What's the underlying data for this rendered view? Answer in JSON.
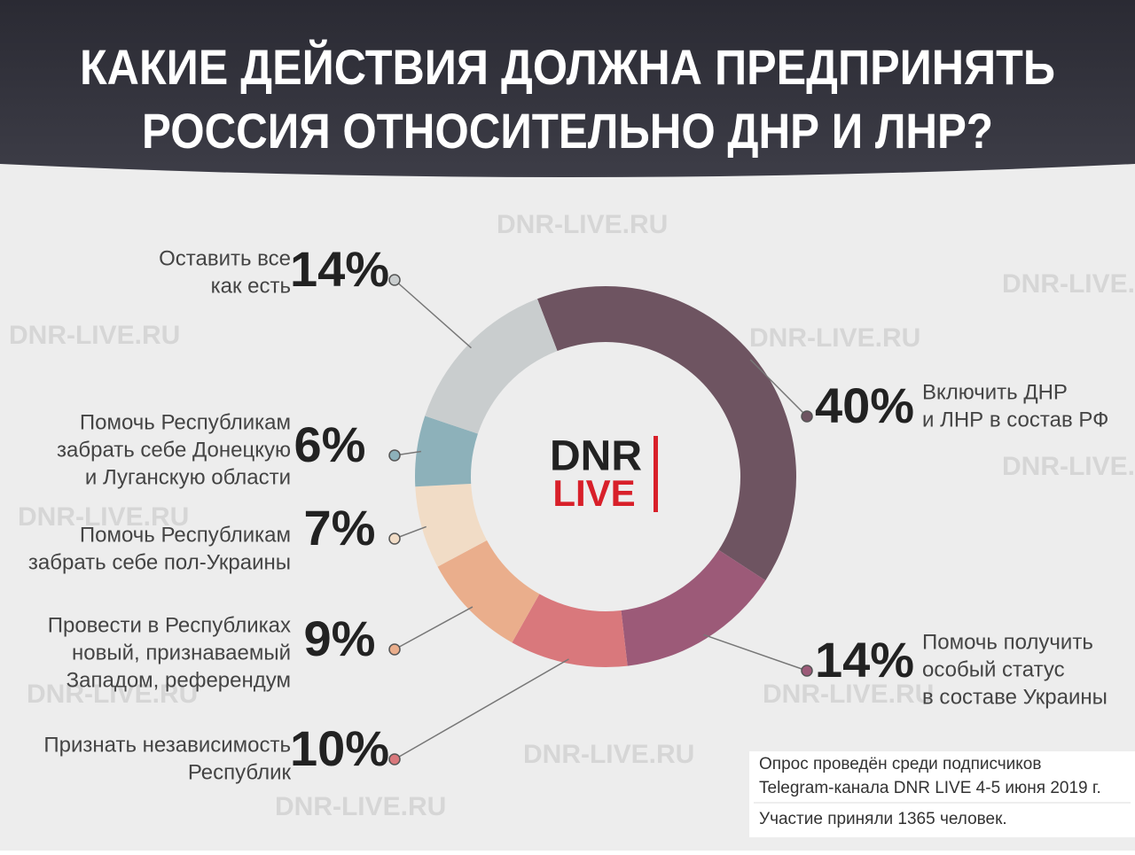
{
  "chart_data": {
    "type": "donut",
    "title": [
      "КАКИЕ ДЕЙСТВИЯ ДОЛЖНА ПРЕДПРИНЯТЬ",
      "РОССИЯ ОТНОСИТЕЛЬНО ДНР И ЛНР?"
    ],
    "categories": [
      [
        "Включить ДНР",
        "и ЛНР в состав РФ"
      ],
      [
        "Помочь получить",
        "особый статус",
        "в составе Украины"
      ],
      [
        "Признать независимость",
        "Республик"
      ],
      [
        "Провести в Республиках",
        "новый, признаваемый",
        "Западом, референдум"
      ],
      [
        "Помочь Республикам",
        "забрать себе пол-Украины"
      ],
      [
        "Помочь Республикам",
        "забрать себе Донецкую",
        "и Луганскую области"
      ],
      [
        "Оставить все",
        "как есть"
      ]
    ],
    "values": [
      40,
      14,
      10,
      9,
      7,
      6,
      14
    ],
    "value_labels": [
      "40%",
      "14%",
      "10%",
      "9%",
      "7%",
      "6%",
      "14%"
    ],
    "colors": [
      "#6e5461",
      "#9c5a78",
      "#d9787c",
      "#eaae8c",
      "#f1dcc6",
      "#8db1ba",
      "#c9cdce"
    ],
    "logo": [
      "DNR",
      "LIVE"
    ],
    "watermark": "DNR-LIVE.RU",
    "note": [
      "Опрос проведён среди подписчиков",
      "Telegram-канала DNR LIVE 4-5 июня 2019 г.",
      "Участие приняли 1365 человек."
    ]
  }
}
